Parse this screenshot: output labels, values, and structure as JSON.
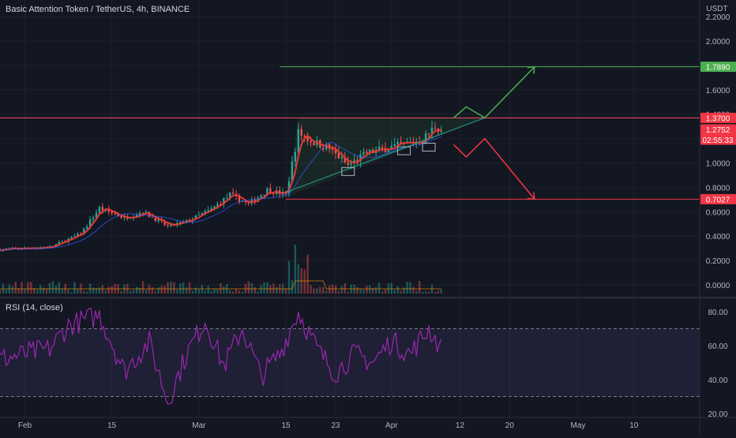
{
  "header": {
    "symbol_title": "Basic Attention Token / TetherUS, 4h, BINANCE",
    "currency": "USDT"
  },
  "colors": {
    "background": "#131722",
    "grid": "#1e222d",
    "axis_text": "#b2b5be",
    "candle_up": "#26a69a",
    "candle_down": "#ef5350",
    "ma": "#e53935",
    "resistance": "#f7525f",
    "target_up": "#4caf50",
    "target_down": "#f23645",
    "rsi_line": "#9c27b0",
    "rsi_band": "#7e57c2"
  },
  "price_axis": {
    "ticks": [
      "2.2000",
      "2.0000",
      "1.8000",
      "1.6000",
      "1.4000",
      "1.2000",
      "1.0000",
      "0.8000",
      "0.6000",
      "0.4000",
      "0.2000",
      "0.0000"
    ],
    "badges": [
      {
        "name": "target-price-badge",
        "value": "1.7890",
        "color": "#4caf50"
      },
      {
        "name": "resistance-price-badge",
        "value": "1.3700",
        "color": "#f23645"
      },
      {
        "name": "last-price-badge",
        "value": "1.2752",
        "sub": "02:55:33",
        "color": "#f23645"
      },
      {
        "name": "support-price-badge",
        "value": "0.7027",
        "color": "#f23645"
      }
    ]
  },
  "rsi": {
    "title": "RSI (14, close)",
    "ticks": [
      "80.00",
      "60.00",
      "40.00",
      "20.00"
    ],
    "upper_band": 70,
    "lower_band": 30
  },
  "time_axis": {
    "labels": [
      "Feb",
      "15",
      "Mar",
      "15",
      "23",
      "Apr",
      "12",
      "20",
      "May",
      "10"
    ]
  },
  "chart_data": {
    "type": "candlestick",
    "interval": "4h",
    "y_axis": {
      "min": 0.0,
      "max": 2.2,
      "currency": "USDT"
    },
    "key_levels": {
      "target": 1.789,
      "resistance": 1.37,
      "last_price": 1.2752,
      "support": 0.7027
    },
    "price_path": [
      {
        "date": "2021-01-28",
        "price": 0.29
      },
      {
        "date": "2021-02-05",
        "price": 0.31
      },
      {
        "date": "2021-02-10",
        "price": 0.42
      },
      {
        "date": "2021-02-13",
        "price": 0.63
      },
      {
        "date": "2021-02-17",
        "price": 0.55
      },
      {
        "date": "2021-02-20",
        "price": 0.6
      },
      {
        "date": "2021-02-24",
        "price": 0.48
      },
      {
        "date": "2021-02-27",
        "price": 0.52
      },
      {
        "date": "2021-03-03",
        "price": 0.62
      },
      {
        "date": "2021-03-06",
        "price": 0.74
      },
      {
        "date": "2021-03-09",
        "price": 0.66
      },
      {
        "date": "2021-03-12",
        "price": 0.78
      },
      {
        "date": "2021-03-15",
        "price": 0.74
      },
      {
        "date": "2021-03-17",
        "price": 1.25
      },
      {
        "date": "2021-03-19",
        "price": 1.18
      },
      {
        "date": "2021-03-22",
        "price": 1.12
      },
      {
        "date": "2021-03-25",
        "price": 0.98
      },
      {
        "date": "2021-03-28",
        "price": 1.08
      },
      {
        "date": "2021-03-31",
        "price": 1.12
      },
      {
        "date": "2021-04-03",
        "price": 1.15
      },
      {
        "date": "2021-04-06",
        "price": 1.19
      },
      {
        "date": "2021-04-08",
        "price": 1.3
      },
      {
        "date": "2021-04-09",
        "price": 1.2752
      }
    ],
    "rsi_path": [
      {
        "date": "2021-01-28",
        "rsi": 52
      },
      {
        "date": "2021-02-05",
        "rsi": 58
      },
      {
        "date": "2021-02-08",
        "rsi": 72
      },
      {
        "date": "2021-02-13",
        "rsi": 78
      },
      {
        "date": "2021-02-17",
        "rsi": 45
      },
      {
        "date": "2021-02-21",
        "rsi": 62
      },
      {
        "date": "2021-02-24",
        "rsi": 27
      },
      {
        "date": "2021-02-27",
        "rsi": 55
      },
      {
        "date": "2021-03-02",
        "rsi": 75
      },
      {
        "date": "2021-03-05",
        "rsi": 48
      },
      {
        "date": "2021-03-08",
        "rsi": 70
      },
      {
        "date": "2021-03-11",
        "rsi": 42
      },
      {
        "date": "2021-03-14",
        "rsi": 55
      },
      {
        "date": "2021-03-17",
        "rsi": 80
      },
      {
        "date": "2021-03-20",
        "rsi": 58
      },
      {
        "date": "2021-03-23",
        "rsi": 44
      },
      {
        "date": "2021-03-26",
        "rsi": 55
      },
      {
        "date": "2021-03-29",
        "rsi": 50
      },
      {
        "date": "2021-04-01",
        "rsi": 63
      },
      {
        "date": "2021-04-04",
        "rsi": 55
      },
      {
        "date": "2021-04-07",
        "rsi": 70
      },
      {
        "date": "2021-04-09",
        "rsi": 58
      }
    ],
    "projection_up": [
      {
        "date": "2021-04-11",
        "price": 1.37
      },
      {
        "date": "2021-04-13",
        "price": 1.46
      },
      {
        "date": "2021-04-16",
        "price": 1.37
      },
      {
        "date": "2021-04-24",
        "price": 1.789
      }
    ],
    "projection_down": [
      {
        "date": "2021-04-11",
        "price": 1.15
      },
      {
        "date": "2021-04-13",
        "price": 1.05
      },
      {
        "date": "2021-04-16",
        "price": 1.2
      },
      {
        "date": "2021-04-24",
        "price": 0.7027
      }
    ]
  }
}
